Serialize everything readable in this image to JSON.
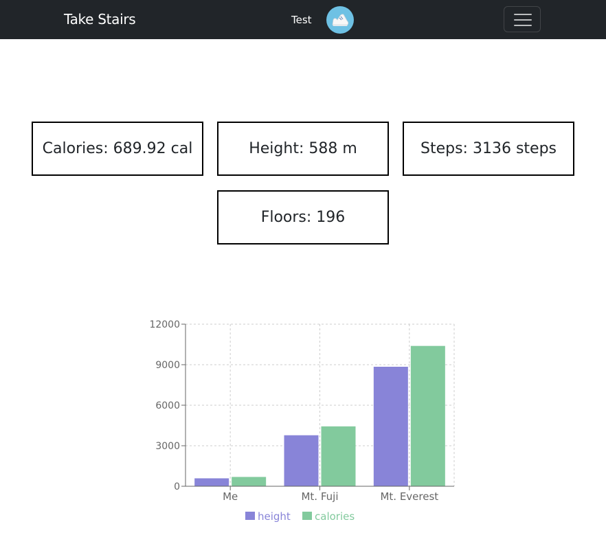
{
  "navbar": {
    "brand": "Take Stairs",
    "username": "Test",
    "avatar_icon": "sneaker-icon",
    "menu_icon": "hamburger-menu-icon",
    "background": "#212529"
  },
  "stats": {
    "calories": "Calories: 689.92 cal",
    "height": "Height: 588 m",
    "steps": "Steps: 3136 steps",
    "floors": "Floors: 196"
  },
  "chart_data": {
    "type": "bar",
    "categories": [
      "Me",
      "Mt. Fuji",
      "Mt. Everest"
    ],
    "series": [
      {
        "name": "height",
        "color": "#8884d8",
        "values": [
          588,
          3776,
          8848
        ]
      },
      {
        "name": "calories",
        "color": "#82ca9d",
        "values": [
          690,
          4434,
          10390
        ]
      }
    ],
    "yticks": [
      "0",
      "3000",
      "6000",
      "9000",
      "12000"
    ],
    "ylim": [
      0,
      12000
    ],
    "grid": true,
    "legend": "bottom-center"
  }
}
